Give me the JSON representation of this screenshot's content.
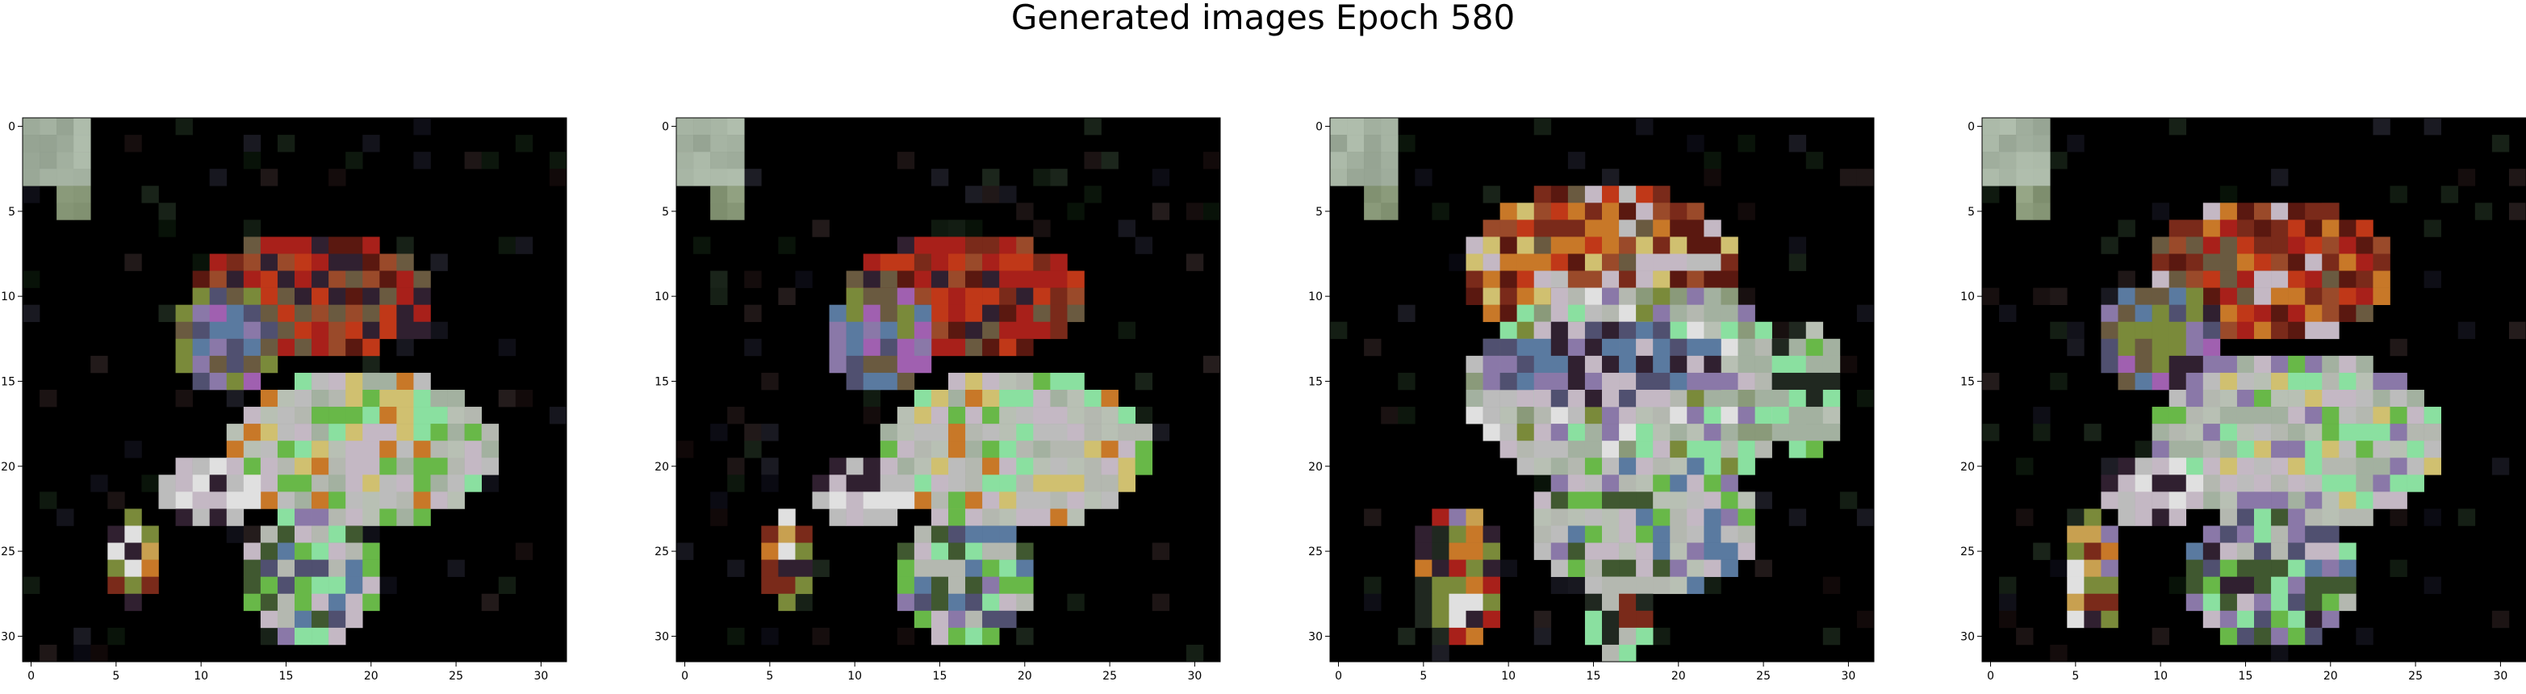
{
  "figure": {
    "title": "Generated images Epoch 580"
  },
  "chart_data": [
    {
      "type": "heatmap",
      "title": "",
      "xlabel": "",
      "ylabel": "",
      "xlim": [
        -0.5,
        31.5
      ],
      "ylim": [
        31.5,
        -0.5
      ],
      "x_ticks": [
        0,
        5,
        10,
        15,
        20,
        25,
        30
      ],
      "y_ticks": [
        0,
        5,
        10,
        15,
        20,
        25,
        30
      ],
      "x_tick_labels": [
        "0",
        "5",
        "10",
        "15",
        "20",
        "25",
        "30"
      ],
      "y_tick_labels": [
        "0",
        "5",
        "10",
        "15",
        "20",
        "25",
        "30"
      ],
      "grid": false,
      "background_color": "#000000",
      "palette": [
        "#000000",
        "#a3b1a0",
        "#b4b8b0",
        "#8a9a7a",
        "#7a2a1a",
        "#a8201a",
        "#c03818",
        "#5a1810",
        "#6a5a40",
        "#9a4a2a",
        "#bcbcbc",
        "#c4b8c4",
        "#b8c0b4",
        "#d0c070",
        "#c87828",
        "#e0e0e0",
        "#8ae0a0",
        "#68b848",
        "#3a5a1a",
        "#a060b0",
        "#505070",
        "#302030",
        "#5a7aa0",
        "#405830",
        "#7a8a3a",
        "#c8a050",
        "#3a7a20",
        "#60b0a0",
        "#202820",
        "#8a78a8"
      ],
      "sprites": [
        {
          "x": 0,
          "y": 0,
          "w": 4,
          "h": 4,
          "c": 1
        },
        {
          "x": 2,
          "y": 4,
          "w": 2,
          "h": 2,
          "c": 3
        }
      ],
      "blobs": [
        {
          "x": 10,
          "y": 7,
          "w": 14,
          "h": 7,
          "c": [
            4,
            5,
            6,
            7,
            9,
            8,
            21,
            5
          ]
        },
        {
          "x": 9,
          "y": 10,
          "w": 6,
          "h": 6,
          "c": [
            20,
            22,
            8,
            29,
            19,
            24
          ]
        },
        {
          "x": 12,
          "y": 15,
          "w": 16,
          "h": 9,
          "c": [
            10,
            11,
            12,
            13,
            14,
            16,
            17,
            1,
            2
          ]
        },
        {
          "x": 8,
          "y": 20,
          "w": 6,
          "h": 4,
          "c": [
            15,
            10,
            11,
            21
          ]
        },
        {
          "x": 13,
          "y": 23,
          "w": 8,
          "h": 8,
          "c": [
            2,
            11,
            20,
            22,
            29,
            16,
            17,
            23
          ]
        },
        {
          "x": 5,
          "y": 23,
          "w": 3,
          "h": 6,
          "c": [
            15,
            4,
            14,
            21,
            24,
            25
          ]
        }
      ]
    },
    {
      "type": "heatmap",
      "title": "",
      "xlabel": "",
      "ylabel": "",
      "xlim": [
        -0.5,
        31.5
      ],
      "ylim": [
        31.5,
        -0.5
      ],
      "x_ticks": [
        0,
        5,
        10,
        15,
        20,
        25,
        30
      ],
      "y_ticks": [
        0,
        5,
        10,
        15,
        20,
        25,
        30
      ],
      "x_tick_labels": [
        "0",
        "5",
        "10",
        "15",
        "20",
        "25",
        "30"
      ],
      "y_tick_labels": [
        "0",
        "5",
        "10",
        "15",
        "20",
        "25",
        "30"
      ],
      "grid": false,
      "background_color": "#000000",
      "palette": [
        "#000000",
        "#a3b1a0",
        "#b4b8b0",
        "#8a9a7a",
        "#7a2a1a",
        "#a8201a",
        "#c03818",
        "#5a1810",
        "#6a5a40",
        "#9a4a2a",
        "#bcbcbc",
        "#c4b8c4",
        "#b8c0b4",
        "#d0c070",
        "#c87828",
        "#e0e0e0",
        "#8ae0a0",
        "#68b848",
        "#3a5a1a",
        "#a060b0",
        "#505070",
        "#302030",
        "#5a7aa0",
        "#405830",
        "#7a8a3a",
        "#c8a050",
        "#3a7a20",
        "#60b0a0",
        "#202820",
        "#8a78a8"
      ],
      "sprites": [
        {
          "x": 0,
          "y": 0,
          "w": 4,
          "h": 4,
          "c": 1
        },
        {
          "x": 2,
          "y": 4,
          "w": 2,
          "h": 2,
          "c": 3
        }
      ],
      "blobs": [
        {
          "x": 10,
          "y": 7,
          "w": 14,
          "h": 7,
          "c": [
            4,
            5,
            6,
            7,
            9,
            8,
            21,
            5
          ]
        },
        {
          "x": 9,
          "y": 10,
          "w": 6,
          "h": 6,
          "c": [
            20,
            22,
            8,
            29,
            19,
            24
          ]
        },
        {
          "x": 12,
          "y": 15,
          "w": 16,
          "h": 9,
          "c": [
            10,
            11,
            12,
            13,
            14,
            16,
            17,
            1,
            2
          ]
        },
        {
          "x": 8,
          "y": 20,
          "w": 6,
          "h": 4,
          "c": [
            15,
            10,
            11,
            21
          ]
        },
        {
          "x": 13,
          "y": 23,
          "w": 8,
          "h": 8,
          "c": [
            2,
            11,
            20,
            22,
            29,
            16,
            17,
            23
          ]
        },
        {
          "x": 5,
          "y": 23,
          "w": 3,
          "h": 6,
          "c": [
            15,
            4,
            14,
            21,
            24,
            25
          ]
        }
      ]
    },
    {
      "type": "heatmap",
      "title": "",
      "xlabel": "",
      "ylabel": "",
      "xlim": [
        -0.5,
        31.5
      ],
      "ylim": [
        31.5,
        -0.5
      ],
      "x_ticks": [
        0,
        5,
        10,
        15,
        20,
        25,
        30
      ],
      "y_ticks": [
        0,
        5,
        10,
        15,
        20,
        25,
        30
      ],
      "x_tick_labels": [
        "0",
        "5",
        "10",
        "15",
        "20",
        "25",
        "30"
      ],
      "y_tick_labels": [
        "0",
        "5",
        "10",
        "15",
        "20",
        "25",
        "30"
      ],
      "grid": false,
      "background_color": "#000000",
      "palette": [
        "#000000",
        "#a3b1a0",
        "#b4b8b0",
        "#8a9a7a",
        "#7a2a1a",
        "#a8201a",
        "#c03818",
        "#5a1810",
        "#6a5a40",
        "#9a4a2a",
        "#bcbcbc",
        "#c4b8c4",
        "#b8c0b4",
        "#d0c070",
        "#c87828",
        "#e0e0e0",
        "#8ae0a0",
        "#68b848",
        "#3a5a1a",
        "#a060b0",
        "#505070",
        "#302030",
        "#5a7aa0",
        "#405830",
        "#7a8a3a",
        "#c8a050",
        "#3a7a20",
        "#60b0a0",
        "#202820",
        "#8a78a8"
      ],
      "sprites": [
        {
          "x": 0,
          "y": 0,
          "w": 4,
          "h": 4,
          "c": 1
        },
        {
          "x": 2,
          "y": 4,
          "w": 2,
          "h": 2,
          "c": 3
        }
      ],
      "blobs": [
        {
          "x": 8,
          "y": 4,
          "w": 16,
          "h": 9,
          "c": [
            9,
            14,
            4,
            8,
            11,
            6,
            13,
            10,
            7
          ]
        },
        {
          "x": 8,
          "y": 10,
          "w": 20,
          "h": 12,
          "c": [
            10,
            11,
            12,
            2,
            1,
            16,
            29,
            3,
            15,
            24
          ]
        },
        {
          "x": 9,
          "y": 12,
          "w": 14,
          "h": 5,
          "c": [
            21,
            20,
            29,
            11,
            22
          ]
        },
        {
          "x": 12,
          "y": 20,
          "w": 13,
          "h": 8,
          "c": [
            10,
            12,
            29,
            22,
            17,
            23,
            11,
            2
          ]
        },
        {
          "x": 15,
          "y": 27,
          "w": 4,
          "h": 5,
          "c": [
            2,
            16,
            4,
            28
          ]
        },
        {
          "x": 5,
          "y": 23,
          "w": 5,
          "h": 8,
          "c": [
            15,
            5,
            14,
            21,
            24,
            25,
            29,
            28
          ]
        },
        {
          "x": 26,
          "y": 12,
          "w": 4,
          "h": 8,
          "c": [
            12,
            16,
            17,
            28,
            1
          ]
        }
      ]
    },
    {
      "type": "heatmap",
      "title": "",
      "xlabel": "",
      "ylabel": "",
      "xlim": [
        -0.5,
        31.5
      ],
      "ylim": [
        31.5,
        -0.5
      ],
      "x_ticks": [
        0,
        5,
        10,
        15,
        20,
        25,
        30
      ],
      "y_ticks": [
        0,
        5,
        10,
        15,
        20,
        25,
        30
      ],
      "x_tick_labels": [
        "0",
        "5",
        "10",
        "15",
        "20",
        "25",
        "30"
      ],
      "y_tick_labels": [
        "0",
        "5",
        "10",
        "15",
        "20",
        "25",
        "30"
      ],
      "grid": false,
      "background_color": "#000000",
      "palette": [
        "#000000",
        "#a3b1a0",
        "#b4b8b0",
        "#8a9a7a",
        "#7a2a1a",
        "#a8201a",
        "#c03818",
        "#5a1810",
        "#6a5a40",
        "#9a4a2a",
        "#bcbcbc",
        "#c4b8c4",
        "#b8c0b4",
        "#d0c070",
        "#c87828",
        "#e0e0e0",
        "#8ae0a0",
        "#68b848",
        "#3a5a1a",
        "#a060b0",
        "#505070",
        "#302030",
        "#5a7aa0",
        "#405830",
        "#7a8a3a",
        "#c8a050",
        "#3a7a20",
        "#60b0a0",
        "#202820",
        "#8a78a8"
      ],
      "sprites": [
        {
          "x": 0,
          "y": 0,
          "w": 4,
          "h": 4,
          "c": 1
        },
        {
          "x": 2,
          "y": 4,
          "w": 2,
          "h": 2,
          "c": 3
        }
      ],
      "blobs": [
        {
          "x": 10,
          "y": 5,
          "w": 14,
          "h": 8,
          "c": [
            4,
            9,
            6,
            5,
            14,
            8,
            11,
            7
          ]
        },
        {
          "x": 7,
          "y": 10,
          "w": 7,
          "h": 6,
          "c": [
            20,
            22,
            8,
            29,
            19,
            24,
            21
          ]
        },
        {
          "x": 10,
          "y": 14,
          "w": 17,
          "h": 10,
          "c": [
            10,
            11,
            12,
            13,
            16,
            17,
            1,
            2,
            29
          ]
        },
        {
          "x": 7,
          "y": 20,
          "w": 6,
          "h": 4,
          "c": [
            15,
            10,
            11,
            21
          ]
        },
        {
          "x": 12,
          "y": 23,
          "w": 10,
          "h": 8,
          "c": [
            2,
            11,
            20,
            22,
            29,
            16,
            17,
            23,
            21
          ]
        },
        {
          "x": 5,
          "y": 23,
          "w": 3,
          "h": 7,
          "c": [
            15,
            4,
            14,
            21,
            24,
            25,
            29
          ]
        }
      ]
    }
  ]
}
